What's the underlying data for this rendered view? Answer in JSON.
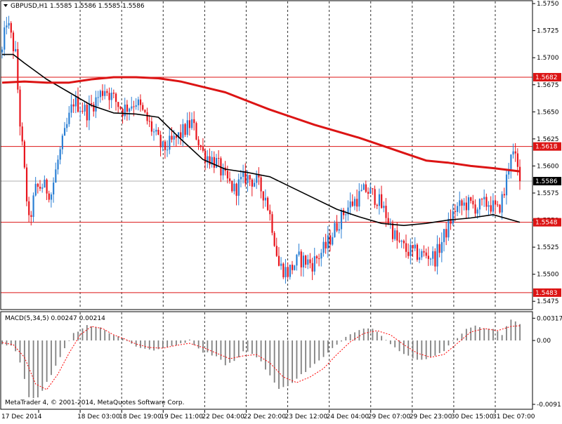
{
  "header": {
    "symbol": "GBPUSD,H1",
    "ohlc": "1.5585 1.5586 1.5585 1.5586"
  },
  "macd_header": {
    "label": "MACD(5,34,5)",
    "values": "0.00247 0.00214"
  },
  "copyright": "MetaTrader 4, © 2001-2014, MetaQuotes Software Corp.",
  "colors": {
    "background": "#ffffff",
    "bull": "#2a7fd4",
    "bear": "#e8141c",
    "ma_fast": "#000000",
    "ma_slow": "#dc1414",
    "hline": "#dc1414",
    "price_label_bg": "#dc1414",
    "current_label_bg": "#000000",
    "grid": "#000000",
    "macd_hist": "#808080",
    "macd_signal": "#ff0000"
  },
  "chart_data": [
    {
      "type": "candlestick",
      "title": "GBPUSD,H1",
      "x_ticks": [
        "17 Dec 2014",
        "18 Dec 03:00",
        "18 Dec 19:00",
        "19 Dec 11:00",
        "22 Dec 04:00",
        "22 Dec 20:00",
        "23 Dec 12:00",
        "24 Dec 04:00",
        "29 Dec 07:00",
        "29 Dec 23:00",
        "30 Dec 15:00",
        "31 Dec 07:00"
      ],
      "y_ticks": [
        1.575,
        1.5725,
        1.57,
        1.5675,
        1.565,
        1.5625,
        1.56,
        1.5575,
        1.555,
        1.5525,
        1.55,
        1.5475
      ],
      "ylim": [
        1.5468,
        1.5752
      ],
      "horizontal_levels": [
        {
          "value": 1.5682,
          "label": "1.5682"
        },
        {
          "value": 1.5618,
          "label": "1.5618"
        },
        {
          "value": 1.5548,
          "label": "1.5548"
        },
        {
          "value": 1.5483,
          "label": "1.5483"
        }
      ],
      "current_price": {
        "value": 1.5586,
        "label": "1.5586"
      },
      "grid": "vertical dashed",
      "series": [
        {
          "name": "",
          "kind": "ma_fast",
          "x": [
            0,
            5,
            10,
            20,
            30,
            40,
            50,
            60,
            70,
            80,
            90,
            100,
            110,
            120,
            130,
            140,
            150,
            160,
            170,
            180,
            190,
            200,
            210,
            220,
            232
          ],
          "values": [
            1.5703,
            1.5703,
            1.5695,
            1.568,
            1.5668,
            1.5656,
            1.5649,
            1.5648,
            1.5645,
            1.5625,
            1.5606,
            1.5597,
            1.5594,
            1.559,
            1.558,
            1.557,
            1.556,
            1.5553,
            1.5547,
            1.5545,
            1.5547,
            1.555,
            1.5552,
            1.5555,
            1.5548
          ]
        },
        {
          "name": "",
          "kind": "ma_slow",
          "x": [
            0,
            10,
            20,
            30,
            40,
            50,
            60,
            70,
            80,
            90,
            100,
            110,
            120,
            130,
            140,
            150,
            160,
            170,
            180,
            190,
            200,
            210,
            220,
            232
          ],
          "values": [
            1.5677,
            1.5678,
            1.5677,
            1.5677,
            1.568,
            1.5682,
            1.5682,
            1.5681,
            1.5678,
            1.5673,
            1.5668,
            1.566,
            1.5652,
            1.5645,
            1.5638,
            1.5632,
            1.5626,
            1.5619,
            1.5612,
            1.5605,
            1.5603,
            1.56,
            1.5598,
            1.5595
          ]
        }
      ],
      "candles": {
        "count": 233,
        "close_path": [
          {
            "i": 0,
            "c": 1.5705
          },
          {
            "i": 2,
            "c": 1.5735
          },
          {
            "i": 6,
            "c": 1.5702
          },
          {
            "i": 8,
            "c": 1.564
          },
          {
            "i": 12,
            "c": 1.5547
          },
          {
            "i": 15,
            "c": 1.5578
          },
          {
            "i": 18,
            "c": 1.5582
          },
          {
            "i": 22,
            "c": 1.5575
          },
          {
            "i": 25,
            "c": 1.5605
          },
          {
            "i": 32,
            "c": 1.566
          },
          {
            "i": 38,
            "c": 1.565
          },
          {
            "i": 46,
            "c": 1.5672
          },
          {
            "i": 54,
            "c": 1.5652
          },
          {
            "i": 60,
            "c": 1.566
          },
          {
            "i": 66,
            "c": 1.5638
          },
          {
            "i": 72,
            "c": 1.5615
          },
          {
            "i": 78,
            "c": 1.5625
          },
          {
            "i": 85,
            "c": 1.564
          },
          {
            "i": 90,
            "c": 1.5612
          },
          {
            "i": 96,
            "c": 1.5603
          },
          {
            "i": 100,
            "c": 1.5588
          },
          {
            "i": 104,
            "c": 1.5578
          },
          {
            "i": 109,
            "c": 1.559
          },
          {
            "i": 114,
            "c": 1.5585
          },
          {
            "i": 118,
            "c": 1.5572
          },
          {
            "i": 121,
            "c": 1.5545
          },
          {
            "i": 124,
            "c": 1.5508
          },
          {
            "i": 128,
            "c": 1.5502
          },
          {
            "i": 133,
            "c": 1.5514
          },
          {
            "i": 139,
            "c": 1.551
          },
          {
            "i": 145,
            "c": 1.5525
          },
          {
            "i": 150,
            "c": 1.5546
          },
          {
            "i": 154,
            "c": 1.556
          },
          {
            "i": 158,
            "c": 1.5568
          },
          {
            "i": 163,
            "c": 1.5578
          },
          {
            "i": 168,
            "c": 1.557
          },
          {
            "i": 172,
            "c": 1.5555
          },
          {
            "i": 177,
            "c": 1.553
          },
          {
            "i": 181,
            "c": 1.5522
          },
          {
            "i": 187,
            "c": 1.5518
          },
          {
            "i": 191,
            "c": 1.5518
          },
          {
            "i": 194,
            "c": 1.5515
          },
          {
            "i": 198,
            "c": 1.5535
          },
          {
            "i": 203,
            "c": 1.556
          },
          {
            "i": 208,
            "c": 1.5565
          },
          {
            "i": 213,
            "c": 1.5562
          },
          {
            "i": 218,
            "c": 1.5566
          },
          {
            "i": 222,
            "c": 1.5558
          },
          {
            "i": 225,
            "c": 1.5575
          },
          {
            "i": 228,
            "c": 1.5615
          },
          {
            "i": 230,
            "c": 1.5605
          },
          {
            "i": 232,
            "c": 1.5586
          }
        ]
      }
    },
    {
      "type": "bar",
      "title": "MACD(5,34,5)",
      "y_ticks": [
        0.00317,
        0.0,
        -0.0091
      ],
      "ylim": [
        -0.0097,
        0.004
      ],
      "series": [
        {
          "name": "",
          "kind": "histogram",
          "x": [
            0,
            5,
            8,
            12,
            16,
            20,
            25,
            28,
            32,
            38,
            44,
            50,
            55,
            60,
            66,
            72,
            78,
            84,
            90,
            96,
            100,
            104,
            108,
            112,
            116,
            120,
            124,
            128,
            132,
            136,
            140,
            144,
            148,
            152,
            156,
            160,
            164,
            168,
            172,
            176,
            180,
            186,
            192,
            198,
            204,
            208,
            212,
            216,
            220,
            224,
            228,
            232
          ],
          "values": [
            -0.0004,
            -0.0008,
            -0.003,
            -0.008,
            -0.0082,
            -0.006,
            -0.003,
            -0.001,
            0.001,
            0.0022,
            0.0018,
            0.0008,
            0.0002,
            -0.0008,
            -0.0014,
            -0.0012,
            -0.0006,
            0.0,
            -0.0016,
            -0.0022,
            -0.0034,
            -0.003,
            -0.0016,
            -0.0018,
            -0.003,
            -0.005,
            -0.007,
            -0.0064,
            -0.0054,
            -0.0044,
            -0.0034,
            -0.0024,
            -0.0012,
            0.0,
            0.001,
            0.0016,
            0.0018,
            0.0014,
            0.0002,
            -0.001,
            -0.002,
            -0.0028,
            -0.0024,
            -0.0014,
            0.0004,
            0.0018,
            0.002,
            0.0018,
            0.0016,
            0.0008,
            0.003,
            0.0024
          ]
        },
        {
          "name": "",
          "kind": "signal",
          "x": [
            0,
            5,
            10,
            15,
            20,
            25,
            30,
            35,
            40,
            45,
            50,
            55,
            60,
            66,
            72,
            78,
            84,
            90,
            96,
            102,
            108,
            114,
            120,
            126,
            132,
            138,
            144,
            150,
            156,
            162,
            168,
            174,
            180,
            186,
            192,
            198,
            204,
            210,
            216,
            222,
            228,
            232
          ],
          "values": [
            -0.0003,
            -0.0006,
            -0.0024,
            -0.0062,
            -0.007,
            -0.0048,
            -0.0018,
            0.0008,
            0.002,
            0.0017,
            0.0008,
            0.0002,
            -0.0005,
            -0.001,
            -0.0011,
            -0.0007,
            -0.0004,
            -0.001,
            -0.0018,
            -0.0026,
            -0.0022,
            -0.002,
            -0.0032,
            -0.0052,
            -0.006,
            -0.0052,
            -0.004,
            -0.002,
            -0.0002,
            0.001,
            0.0014,
            0.0008,
            -0.0006,
            -0.0018,
            -0.0024,
            -0.002,
            -0.0004,
            0.0012,
            0.0017,
            0.0014,
            0.002,
            0.0021
          ]
        }
      ]
    }
  ],
  "icons": {
    "menu": "triangle-down-icon"
  }
}
